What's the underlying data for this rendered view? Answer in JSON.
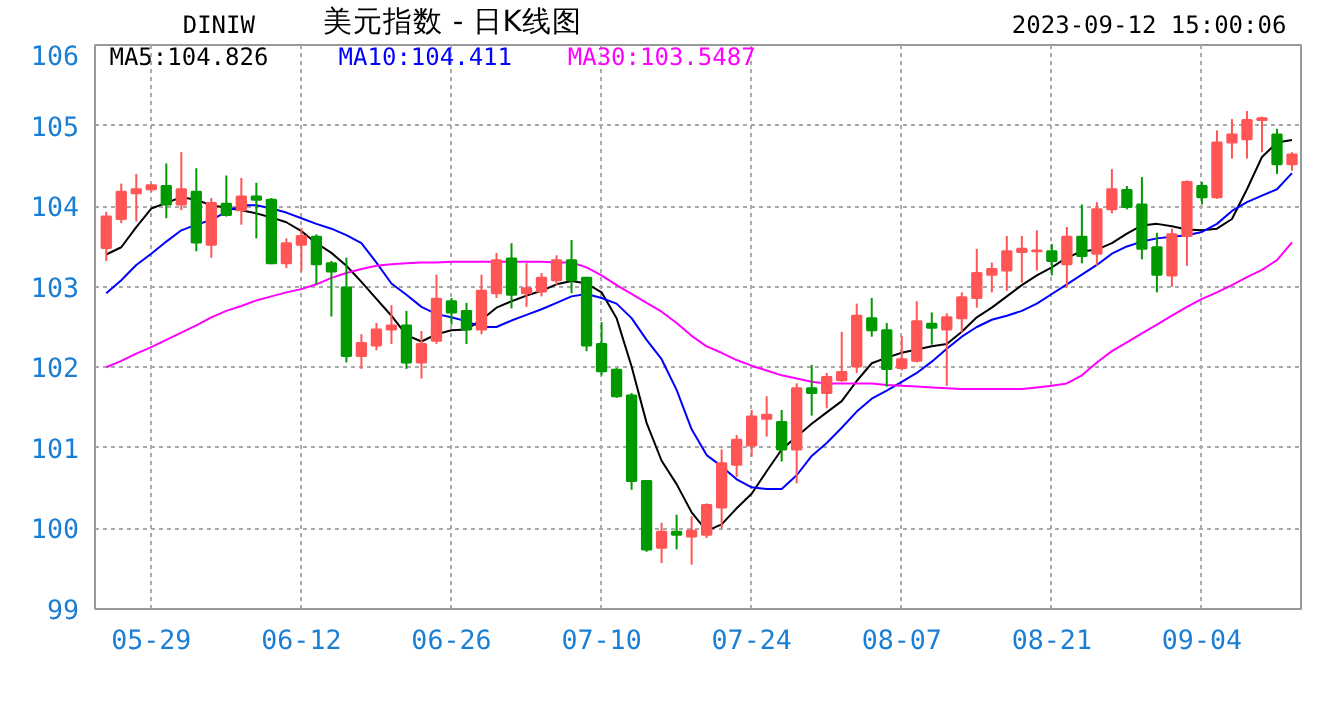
{
  "chart_data": {
    "type": "candlestick",
    "title": "美元指数 - 日K线图",
    "subtitle": "DINIW",
    "annotations": [
      "2023-09-12 15:00:06"
    ],
    "categories": [
      null,
      null,
      null,
      "05-29",
      null,
      null,
      null,
      null,
      null,
      null,
      null,
      null,
      null,
      "06-12",
      null,
      null,
      null,
      null,
      null,
      null,
      null,
      null,
      null,
      "06-26",
      null,
      null,
      null,
      null,
      null,
      null,
      null,
      null,
      null,
      "07-10",
      null,
      null,
      null,
      null,
      null,
      null,
      null,
      null,
      null,
      "07-24",
      null,
      null,
      null,
      null,
      null,
      null,
      null,
      null,
      null,
      "08-07",
      null,
      null,
      null,
      null,
      null,
      null,
      null,
      null,
      null,
      "08-21",
      null,
      null,
      null,
      null,
      null,
      null,
      null,
      null,
      null,
      "09-04",
      null,
      null,
      null,
      null,
      null,
      null
    ],
    "ohlc": [
      [
        103.48,
        103.93,
        103.32,
        103.87
      ],
      [
        103.84,
        104.28,
        103.79,
        104.18
      ],
      [
        104.16,
        104.4,
        103.81,
        104.21
      ],
      [
        104.21,
        104.28,
        104.18,
        104.26
      ],
      [
        104.25,
        104.53,
        103.85,
        104.02
      ],
      [
        104.02,
        104.67,
        103.95,
        104.21
      ],
      [
        104.18,
        104.47,
        103.44,
        103.55
      ],
      [
        103.52,
        104.1,
        103.36,
        104.04
      ],
      [
        104.03,
        104.38,
        103.87,
        103.89
      ],
      [
        103.95,
        104.35,
        103.77,
        104.12
      ],
      [
        104.12,
        104.29,
        103.6,
        104.08
      ],
      [
        104.08,
        104.1,
        103.28,
        103.29
      ],
      [
        103.29,
        103.6,
        103.23,
        103.54
      ],
      [
        103.52,
        103.73,
        103.19,
        103.63
      ],
      [
        103.62,
        103.65,
        103.03,
        103.28
      ],
      [
        103.29,
        103.32,
        102.63,
        103.19
      ],
      [
        102.99,
        103.36,
        102.06,
        102.14
      ],
      [
        102.14,
        102.41,
        101.98,
        102.3
      ],
      [
        102.27,
        102.55,
        102.21,
        102.47
      ],
      [
        102.47,
        102.77,
        102.29,
        102.52
      ],
      [
        102.52,
        102.7,
        101.98,
        102.06
      ],
      [
        102.06,
        102.45,
        101.86,
        102.29
      ],
      [
        102.33,
        103.15,
        102.29,
        102.85
      ],
      [
        102.82,
        102.86,
        102.53,
        102.68
      ],
      [
        102.7,
        102.8,
        102.29,
        102.47
      ],
      [
        102.47,
        103.15,
        102.41,
        102.95
      ],
      [
        102.92,
        103.42,
        102.86,
        103.33
      ],
      [
        103.35,
        103.54,
        102.73,
        102.9
      ],
      [
        102.92,
        103.29,
        102.75,
        102.98
      ],
      [
        102.94,
        103.17,
        102.88,
        103.11
      ],
      [
        103.08,
        103.39,
        103.02,
        103.33
      ],
      [
        103.33,
        103.58,
        102.92,
        103.08
      ],
      [
        103.11,
        103.12,
        102.2,
        102.27
      ],
      [
        102.29,
        102.56,
        101.9,
        101.95
      ],
      [
        101.97,
        101.99,
        101.62,
        101.64
      ],
      [
        101.65,
        101.68,
        100.48,
        100.59
      ],
      [
        100.59,
        100.59,
        99.71,
        99.74
      ],
      [
        99.76,
        100.07,
        99.57,
        99.96
      ],
      [
        99.96,
        100.17,
        99.74,
        99.92
      ],
      [
        99.9,
        100.15,
        99.55,
        99.97
      ],
      [
        99.92,
        100.31,
        99.88,
        100.29
      ],
      [
        100.26,
        100.98,
        100.0,
        100.81
      ],
      [
        100.79,
        101.16,
        100.64,
        101.1
      ],
      [
        101.03,
        101.47,
        100.89,
        101.39
      ],
      [
        101.36,
        101.64,
        101.14,
        101.41
      ],
      [
        101.32,
        101.47,
        100.83,
        100.98
      ],
      [
        100.98,
        101.8,
        100.56,
        101.74
      ],
      [
        101.74,
        102.03,
        101.4,
        101.68
      ],
      [
        101.68,
        101.93,
        101.49,
        101.88
      ],
      [
        101.84,
        102.44,
        101.82,
        101.94
      ],
      [
        102.01,
        102.79,
        101.93,
        102.64
      ],
      [
        102.61,
        102.86,
        102.38,
        102.46
      ],
      [
        102.46,
        102.55,
        101.76,
        101.98
      ],
      [
        101.99,
        102.39,
        101.96,
        102.1
      ],
      [
        102.08,
        102.82,
        102.06,
        102.57
      ],
      [
        102.54,
        102.68,
        102.28,
        102.49
      ],
      [
        102.47,
        102.67,
        101.77,
        102.62
      ],
      [
        102.61,
        102.93,
        102.43,
        102.87
      ],
      [
        102.86,
        103.47,
        102.74,
        103.17
      ],
      [
        103.15,
        103.3,
        102.93,
        103.22
      ],
      [
        103.2,
        103.63,
        102.95,
        103.44
      ],
      [
        103.43,
        103.63,
        103.05,
        103.47
      ],
      [
        103.44,
        103.7,
        103.2,
        103.45
      ],
      [
        103.44,
        103.53,
        103.14,
        103.32
      ],
      [
        103.28,
        103.74,
        102.99,
        103.62
      ],
      [
        103.62,
        104.02,
        103.29,
        103.38
      ],
      [
        103.41,
        104.05,
        103.26,
        103.96
      ],
      [
        103.96,
        104.46,
        103.91,
        104.21
      ],
      [
        104.2,
        104.25,
        103.96,
        103.99
      ],
      [
        104.02,
        104.36,
        103.34,
        103.47
      ],
      [
        103.49,
        103.67,
        102.93,
        103.15
      ],
      [
        103.14,
        103.72,
        103.0,
        103.65
      ],
      [
        103.63,
        104.32,
        103.26,
        104.3
      ],
      [
        104.25,
        104.3,
        104.02,
        104.11
      ],
      [
        104.11,
        104.94,
        104.09,
        104.79
      ],
      [
        104.79,
        105.08,
        104.59,
        104.89
      ],
      [
        104.83,
        105.18,
        104.59,
        105.07
      ],
      [
        105.07,
        105.11,
        104.67,
        105.09
      ],
      [
        104.89,
        104.96,
        104.4,
        104.52
      ],
      [
        104.52,
        104.67,
        104.44,
        104.64
      ]
    ],
    "colors": [
      "#ff5555",
      "#ff5555",
      "#ff5555",
      "#ff5555",
      "#009900",
      "#ff5555",
      "#009900",
      "#ff5555",
      "#009900",
      "#ff5555",
      "#009900",
      "#009900",
      "#ff5555",
      "#ff5555",
      "#009900",
      "#009900",
      "#009900",
      "#ff5555",
      "#ff5555",
      "#ff5555",
      "#009900",
      "#ff5555",
      "#ff5555",
      "#009900",
      "#009900",
      "#ff5555",
      "#ff5555",
      "#009900",
      "#ff5555",
      "#ff5555",
      "#ff5555",
      "#009900",
      "#009900",
      "#009900",
      "#009900",
      "#009900",
      "#009900",
      "#ff5555",
      "#009900",
      "#ff5555",
      "#ff5555",
      "#ff5555",
      "#ff5555",
      "#ff5555",
      "#ff5555",
      "#009900",
      "#ff5555",
      "#009900",
      "#ff5555",
      "#ff5555",
      "#ff5555",
      "#009900",
      "#009900",
      "#ff5555",
      "#ff5555",
      "#009900",
      "#ff5555",
      "#ff5555",
      "#ff5555",
      "#ff5555",
      "#ff5555",
      "#ff5555",
      "#ff5555",
      "#009900",
      "#ff5555",
      "#009900",
      "#ff5555",
      "#ff5555",
      "#009900",
      "#009900",
      "#009900",
      "#ff5555",
      "#ff5555",
      "#009900",
      "#ff5555",
      "#ff5555",
      "#ff5555",
      "#ff5555",
      "#009900",
      "#ff5555"
    ],
    "series": [
      {
        "type": "line",
        "name": "MA5:104.826",
        "color": "#000000",
        "values": [
          103.4,
          103.49,
          103.74,
          103.97,
          104.04,
          104.11,
          104.08,
          104.01,
          103.98,
          103.95,
          103.91,
          103.86,
          103.8,
          103.69,
          103.54,
          103.42,
          103.26,
          103.06,
          102.85,
          102.64,
          102.4,
          102.32,
          102.41,
          102.46,
          102.47,
          102.59,
          102.74,
          102.82,
          102.89,
          102.95,
          103.03,
          103.07,
          103.04,
          102.93,
          102.61,
          102.01,
          101.31,
          100.84,
          100.55,
          100.2,
          99.97,
          100.05,
          100.25,
          100.43,
          100.71,
          100.98,
          101.14,
          101.3,
          101.44,
          101.58,
          101.83,
          102.05,
          102.12,
          102.18,
          102.22,
          102.26,
          102.29,
          102.44,
          102.62,
          102.74,
          102.88,
          103.02,
          103.14,
          103.24,
          103.36,
          103.44,
          103.46,
          103.54,
          103.66,
          103.76,
          103.78,
          103.75,
          103.71,
          103.7,
          103.72,
          103.84,
          104.21,
          104.61,
          104.79,
          104.82
        ]
      },
      {
        "type": "line",
        "name": "MA10:104.411",
        "color": "#0000ff",
        "values": [
          102.92,
          103.08,
          103.27,
          103.41,
          103.56,
          103.7,
          103.77,
          103.83,
          103.93,
          104.01,
          104.01,
          103.97,
          103.92,
          103.85,
          103.78,
          103.72,
          103.64,
          103.54,
          103.3,
          103.04,
          102.9,
          102.75,
          102.66,
          102.62,
          102.57,
          102.5,
          102.5,
          102.58,
          102.65,
          102.72,
          102.8,
          102.88,
          102.91,
          102.86,
          102.79,
          102.61,
          102.34,
          102.1,
          101.72,
          101.23,
          100.91,
          100.77,
          100.61,
          100.51,
          100.49,
          100.49,
          100.66,
          100.9,
          101.06,
          101.25,
          101.45,
          101.61,
          101.71,
          101.82,
          101.93,
          102.07,
          102.23,
          102.38,
          102.5,
          102.59,
          102.64,
          102.7,
          102.79,
          102.91,
          103.03,
          103.15,
          103.27,
          103.41,
          103.5,
          103.56,
          103.6,
          103.62,
          103.64,
          103.68,
          103.78,
          103.94,
          104.05,
          104.13,
          104.21,
          104.41
        ]
      },
      {
        "type": "line",
        "name": "MA30:103.5487",
        "color": "#ff00ff",
        "values": [
          102.0,
          102.08,
          102.17,
          102.25,
          102.34,
          102.43,
          102.52,
          102.62,
          102.7,
          102.76,
          102.83,
          102.88,
          102.93,
          102.97,
          103.03,
          103.11,
          103.17,
          103.22,
          103.26,
          103.28,
          103.29,
          103.3,
          103.3,
          103.31,
          103.31,
          103.31,
          103.31,
          103.31,
          103.31,
          103.31,
          103.3,
          103.3,
          103.24,
          103.14,
          103.02,
          102.91,
          102.8,
          102.69,
          102.55,
          102.39,
          102.26,
          102.18,
          102.09,
          102.02,
          101.96,
          101.9,
          101.86,
          101.82,
          101.8,
          101.8,
          101.8,
          101.8,
          101.78,
          101.77,
          101.76,
          101.75,
          101.74,
          101.73,
          101.73,
          101.73,
          101.73,
          101.73,
          101.75,
          101.77,
          101.8,
          101.9,
          102.06,
          102.2,
          102.31,
          102.42,
          102.53,
          102.64,
          102.75,
          102.85,
          102.93,
          103.02,
          103.12,
          103.21,
          103.33,
          103.55
        ]
      }
    ],
    "ylim": [
      99,
      106
    ],
    "yticks": [
      99,
      100,
      101,
      102,
      103,
      104,
      105,
      106
    ],
    "grid": true,
    "legend": "top left"
  }
}
